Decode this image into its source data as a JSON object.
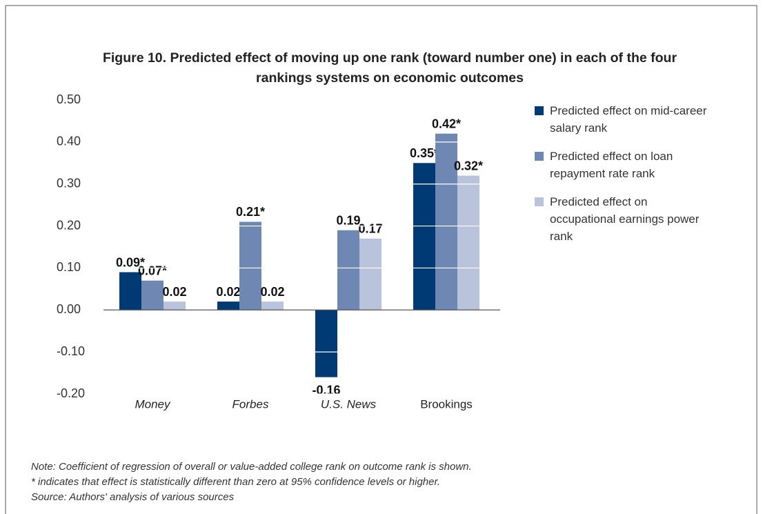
{
  "chart_data": {
    "type": "bar",
    "title": "Figure 10. Predicted effect of moving up one rank (toward number one) in each of the four rankings systems on economic outcomes",
    "categories": [
      "Money",
      "Forbes",
      "U.S. News",
      "Brookings"
    ],
    "series": [
      {
        "name": "Predicted effect on mid-career salary rank",
        "color": "#003a75",
        "values": [
          0.09,
          0.02,
          -0.16,
          0.35
        ],
        "value_labels": [
          "0.09*",
          "0.02",
          "-0.16",
          "0.35*"
        ]
      },
      {
        "name": "Predicted effect on loan repayment rate rank",
        "color": "#6f87b3",
        "values": [
          0.07,
          0.21,
          0.19,
          0.42
        ],
        "value_labels": [
          "0.07*",
          "0.21*",
          "0.19",
          "0.42*"
        ]
      },
      {
        "name": "Predicted effect on occupational earnings power rank",
        "color": "#b9c3db",
        "values": [
          0.02,
          0.02,
          0.17,
          0.32
        ],
        "value_labels": [
          "0.02",
          "0.02",
          "0.17",
          "0.32*"
        ]
      }
    ],
    "ylim": [
      -0.2,
      0.5
    ],
    "yticks": [
      {
        "value": -0.2,
        "label": "-0.20"
      },
      {
        "value": -0.1,
        "label": "-0.10"
      },
      {
        "value": 0,
        "label": "0.00"
      },
      {
        "value": 0.1,
        "label": "0.10"
      },
      {
        "value": 0.2,
        "label": "0.20"
      },
      {
        "value": 0.3,
        "label": "0.30"
      },
      {
        "value": 0.4,
        "label": "0.40"
      },
      {
        "value": 0.5,
        "label": "0.50"
      }
    ],
    "grid": true,
    "legend": "right",
    "notes": [
      "Note: Coefficient of regression of overall or value-added college rank on outcome rank is shown.",
      "* indicates that effect is statistically different than zero at 95% confidence levels or higher.",
      "Source: Authors' analysis of various sources"
    ]
  }
}
